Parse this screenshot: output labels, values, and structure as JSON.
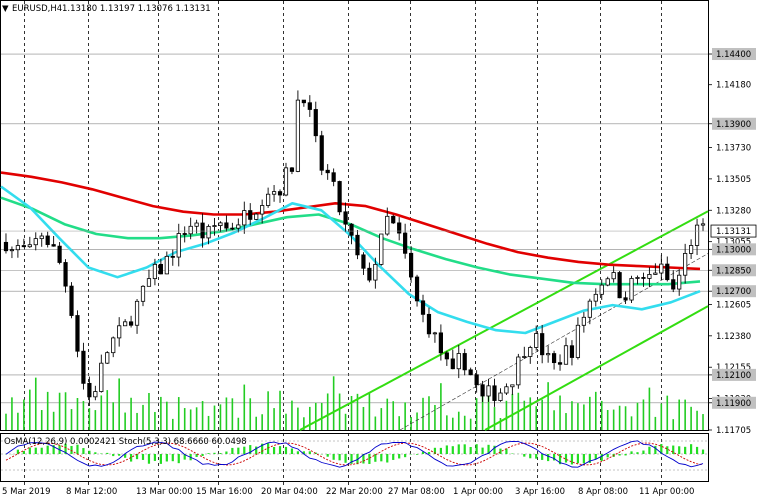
{
  "header": {
    "symbol": "EURUSD,H4",
    "ohlc": "1.13180 1.13197 1.13076 1.13131"
  },
  "osma_header": "OsMA(12,26,9) 0.0002421 Stoch(5,3,3) 68.6660 60.0498",
  "current_price_label": "1.13131",
  "colors": {
    "bullish": "#000000",
    "red_ma": "#e10000",
    "green_ma": "#22dd88",
    "cyan_ma": "#33ddee",
    "channel": "#33dd11",
    "volume": "#22cc22",
    "osma": "#22dd22",
    "stoch_main": "#0000cc",
    "stoch_signal": "#cc0000",
    "grid": "#000000"
  },
  "chart_data": {
    "type": "candlestick",
    "symbol": "EURUSD",
    "timeframe": "H4",
    "ylim": [
      1.11705,
      1.1478
    ],
    "price_axis_labels": [
      "1.14400",
      "1.14180",
      "1.13900",
      "1.13730",
      "1.13505",
      "1.13280",
      "1.13055",
      "1.13000",
      "1.12850",
      "1.12700",
      "1.12605",
      "1.12380",
      "1.12155",
      "1.12100",
      "1.11930",
      "1.11900",
      "1.11705"
    ],
    "highlighted_levels": [
      "1.14400",
      "1.13900",
      "1.13000",
      "1.12850",
      "1.12700",
      "1.12100",
      "1.11900"
    ],
    "x_labels": [
      "5 Mar 2019",
      "8 Mar 12:00",
      "13 Mar 00:00",
      "15 Mar 16:00",
      "20 Mar 04:00",
      "22 Mar 20:00",
      "27 Mar 08:00",
      "1 Apr 00:00",
      "3 Apr 16:00",
      "8 Apr 08:00",
      "11 Apr 00:00"
    ],
    "close_path": [
      1.1305,
      1.1298,
      1.1302,
      1.1296,
      1.1305,
      1.1312,
      1.1303,
      1.1296,
      1.1278,
      1.1255,
      1.122,
      1.1192,
      1.1198,
      1.1215,
      1.123,
      1.1238,
      1.1243,
      1.1251,
      1.1262,
      1.1272,
      1.1283,
      1.1285,
      1.1293,
      1.1301,
      1.1312,
      1.1318,
      1.1316,
      1.1309,
      1.1313,
      1.1321,
      1.1315,
      1.1318,
      1.1322,
      1.1326,
      1.133,
      1.1338,
      1.1345,
      1.134,
      1.1352,
      1.136,
      1.142,
      1.1405,
      1.1381,
      1.1358,
      1.1352,
      1.1338,
      1.1318,
      1.1308,
      1.1292,
      1.1278,
      1.1285,
      1.1303,
      1.1322,
      1.1315,
      1.1303,
      1.1282,
      1.1262,
      1.125,
      1.1242,
      1.123,
      1.1218,
      1.1208,
      1.1225,
      1.1214,
      1.1203,
      1.1192,
      1.1198,
      1.1196,
      1.1202,
      1.1208,
      1.1222,
      1.1233,
      1.1238,
      1.1228,
      1.122,
      1.1215,
      1.1228,
      1.1226,
      1.1242,
      1.1256,
      1.1268,
      1.1275,
      1.1283,
      1.1278,
      1.1265,
      1.1273,
      1.1281,
      1.1275,
      1.1283,
      1.1288,
      1.1279,
      1.127,
      1.1285,
      1.1302,
      1.1313,
      1.1313
    ],
    "series": [
      {
        "name": "MA red",
        "values": [
          1.1355,
          1.1352,
          1.1348,
          1.1343,
          1.1337,
          1.1331,
          1.1327,
          1.1325,
          1.1325,
          1.1327,
          1.133,
          1.1333,
          1.1331,
          1.1325,
          1.1318,
          1.1311,
          1.1304,
          1.1298,
          1.1294,
          1.1291,
          1.1289,
          1.1288,
          1.1287,
          1.1286
        ]
      },
      {
        "name": "MA green",
        "values": [
          1.1337,
          1.1329,
          1.1318,
          1.1311,
          1.1308,
          1.1308,
          1.131,
          1.1313,
          1.1318,
          1.1323,
          1.1325,
          1.1318,
          1.1308,
          1.13,
          1.1293,
          1.1287,
          1.1282,
          1.1279,
          1.1276,
          1.1275,
          1.1275,
          1.1275,
          1.1277
        ]
      },
      {
        "name": "MA cyan",
        "values": [
          1.1345,
          1.133,
          1.1308,
          1.1287,
          1.128,
          1.1287,
          1.1298,
          1.1304,
          1.1312,
          1.1322,
          1.1333,
          1.1328,
          1.131,
          1.1288,
          1.1268,
          1.1255,
          1.1248,
          1.1242,
          1.124,
          1.1248,
          1.1256,
          1.126,
          1.1257,
          1.1262,
          1.127
        ]
      }
    ]
  }
}
